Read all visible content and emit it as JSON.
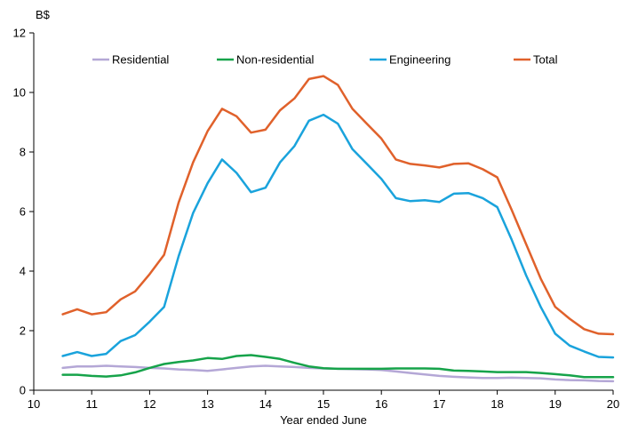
{
  "chart_data": {
    "type": "line",
    "title": "",
    "xlabel": "Year ended June",
    "ylabel": "B$",
    "xlim": [
      10,
      20
    ],
    "ylim": [
      0,
      12
    ],
    "x_ticks": [
      "10",
      "11",
      "12",
      "13",
      "14",
      "15",
      "16",
      "17",
      "18",
      "19",
      "20"
    ],
    "y_ticks": [
      "0",
      "2",
      "4",
      "6",
      "8",
      "10",
      "12"
    ],
    "grid": false,
    "legend_position": "top",
    "x": [
      10.5,
      10.75,
      11,
      11.25,
      11.5,
      11.75,
      12,
      12.25,
      12.5,
      12.75,
      13,
      13.25,
      13.5,
      13.75,
      14,
      14.25,
      14.5,
      14.75,
      15,
      15.25,
      15.5,
      15.75,
      16,
      16.25,
      16.5,
      16.75,
      17,
      17.25,
      17.5,
      17.75,
      18,
      18.25,
      18.5,
      18.75,
      19,
      19.25,
      19.5,
      19.75,
      20
    ],
    "series": [
      {
        "name": "Residential",
        "color": "#b4a7d6",
        "values": [
          0.75,
          0.8,
          0.8,
          0.82,
          0.8,
          0.78,
          0.75,
          0.73,
          0.7,
          0.68,
          0.65,
          0.7,
          0.75,
          0.8,
          0.82,
          0.8,
          0.78,
          0.75,
          0.73,
          0.72,
          0.71,
          0.7,
          0.68,
          0.63,
          0.58,
          0.53,
          0.48,
          0.45,
          0.43,
          0.41,
          0.41,
          0.42,
          0.41,
          0.4,
          0.36,
          0.34,
          0.33,
          0.31,
          0.3
        ]
      },
      {
        "name": "Non-residential",
        "color": "#16a34a",
        "values": [
          0.52,
          0.52,
          0.48,
          0.46,
          0.5,
          0.6,
          0.75,
          0.88,
          0.95,
          1.0,
          1.08,
          1.05,
          1.15,
          1.18,
          1.12,
          1.05,
          0.92,
          0.8,
          0.74,
          0.72,
          0.72,
          0.72,
          0.72,
          0.73,
          0.73,
          0.73,
          0.72,
          0.66,
          0.65,
          0.63,
          0.61,
          0.61,
          0.61,
          0.58,
          0.54,
          0.5,
          0.44,
          0.44,
          0.44
        ]
      },
      {
        "name": "Engineering",
        "color": "#1aa3dc",
        "values": [
          1.15,
          1.28,
          1.15,
          1.22,
          1.65,
          1.85,
          2.3,
          2.8,
          4.5,
          5.95,
          6.95,
          7.75,
          7.3,
          6.65,
          6.8,
          7.65,
          8.2,
          9.05,
          9.25,
          8.95,
          8.1,
          7.6,
          7.1,
          6.45,
          6.35,
          6.38,
          6.32,
          6.6,
          6.62,
          6.45,
          6.15,
          5.05,
          3.85,
          2.8,
          1.9,
          1.5,
          1.3,
          1.12,
          1.1
        ]
      },
      {
        "name": "Total",
        "color": "#e0612b",
        "values": [
          2.55,
          2.72,
          2.55,
          2.62,
          3.05,
          3.32,
          3.9,
          4.55,
          6.3,
          7.65,
          8.7,
          9.45,
          9.2,
          8.65,
          8.75,
          9.4,
          9.8,
          10.45,
          10.55,
          10.25,
          9.45,
          8.95,
          8.45,
          7.75,
          7.6,
          7.55,
          7.48,
          7.6,
          7.62,
          7.42,
          7.15,
          6.05,
          4.9,
          3.75,
          2.8,
          2.4,
          2.05,
          1.9,
          1.88
        ]
      }
    ]
  }
}
